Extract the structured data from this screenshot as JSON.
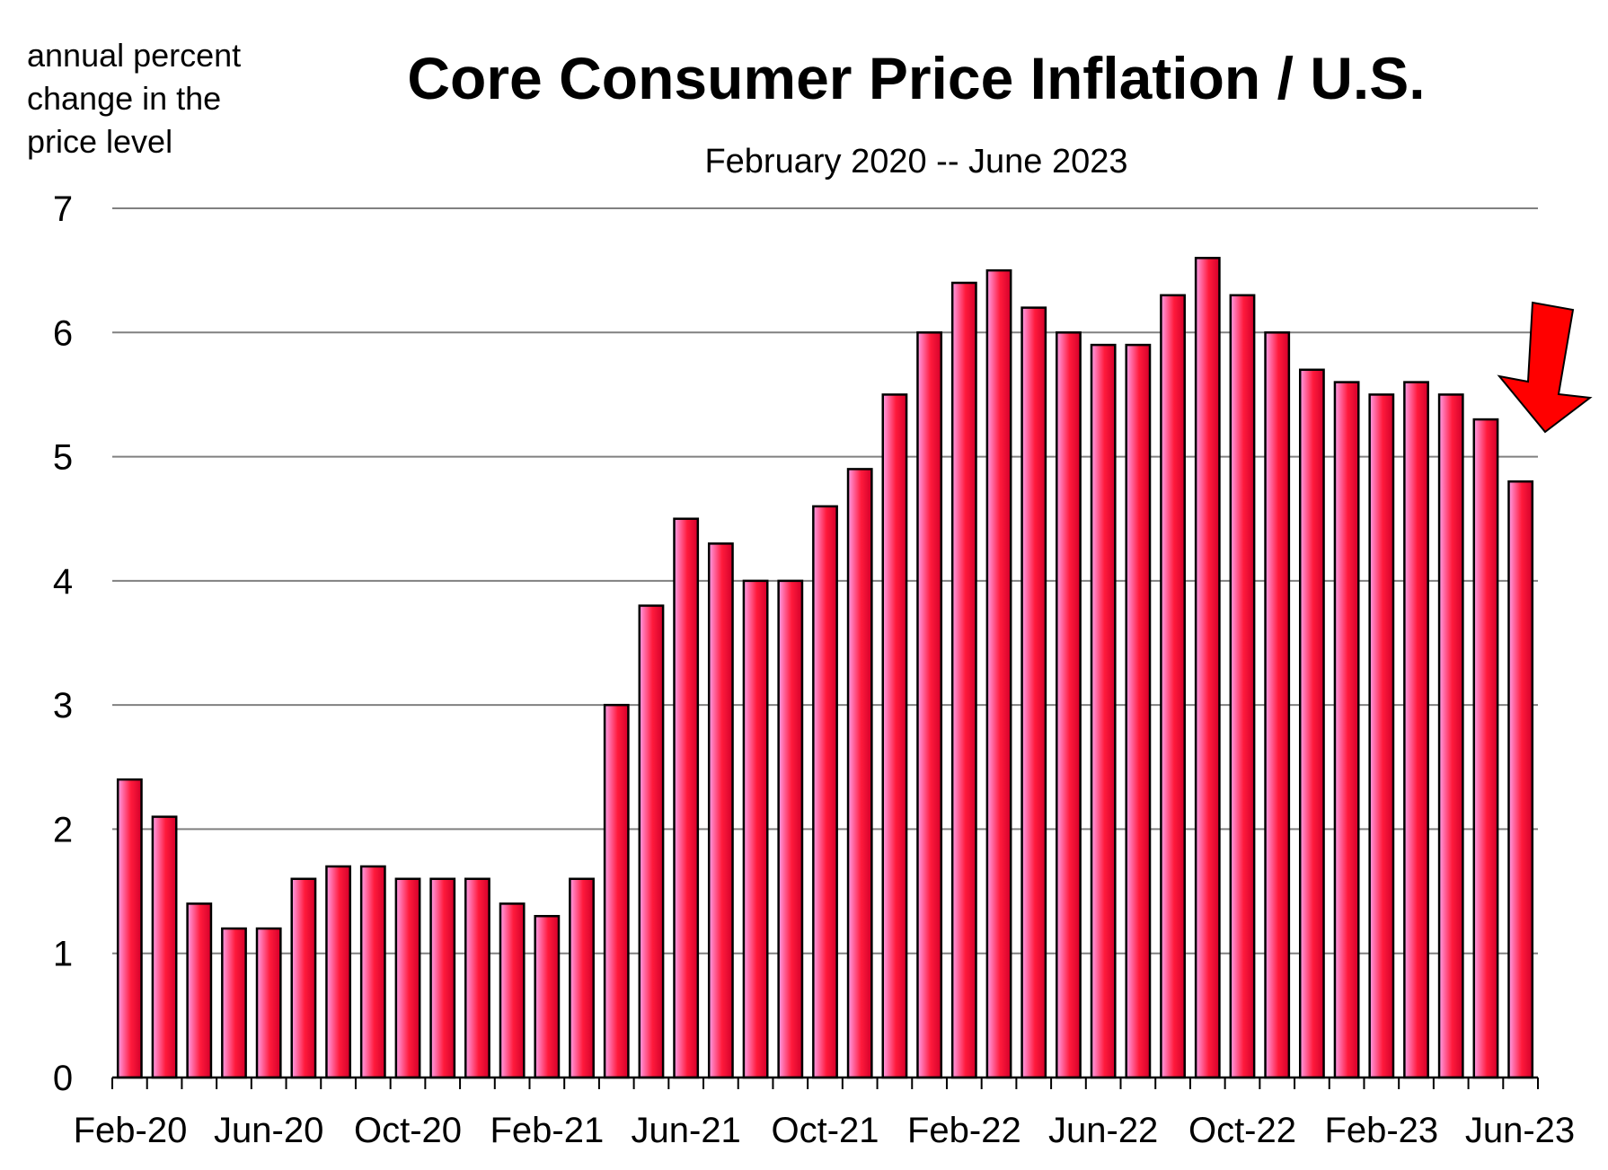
{
  "chart_data": {
    "type": "bar",
    "title": "Core Consumer Price Inflation / U.S.",
    "subtitle": "February 2020 -- June 2023",
    "ylabel_lines": [
      "annual  percent",
      "change in the",
      "price level"
    ],
    "xlabel": "",
    "ylim": [
      0,
      7
    ],
    "yticks": [
      0,
      1,
      2,
      3,
      4,
      5,
      6,
      7
    ],
    "grid": true,
    "categories": [
      "Feb-20",
      "Mar-20",
      "Apr-20",
      "May-20",
      "Jun-20",
      "Jul-20",
      "Aug-20",
      "Sep-20",
      "Oct-20",
      "Nov-20",
      "Dec-20",
      "Jan-21",
      "Feb-21",
      "Mar-21",
      "Apr-21",
      "May-21",
      "Jun-21",
      "Jul-21",
      "Aug-21",
      "Sep-21",
      "Oct-21",
      "Nov-21",
      "Dec-21",
      "Jan-22",
      "Feb-22",
      "Mar-22",
      "Apr-22",
      "May-22",
      "Jun-22",
      "Jul-22",
      "Aug-22",
      "Sep-22",
      "Oct-22",
      "Nov-22",
      "Dec-22",
      "Jan-23",
      "Feb-23",
      "Mar-23",
      "Apr-23",
      "May-23",
      "Jun-23"
    ],
    "visible_tick_labels": [
      "Feb-20",
      "Jun-20",
      "Oct-20",
      "Feb-21",
      "Jun-21",
      "Oct-21",
      "Feb-22",
      "Jun-22",
      "Oct-22",
      "Feb-23",
      "Jun-23"
    ],
    "values": [
      2.4,
      2.1,
      1.4,
      1.2,
      1.2,
      1.6,
      1.7,
      1.7,
      1.6,
      1.6,
      1.6,
      1.4,
      1.3,
      1.6,
      3.0,
      3.8,
      4.5,
      4.3,
      4.0,
      4.0,
      4.6,
      4.9,
      5.5,
      6.0,
      6.4,
      6.5,
      6.2,
      6.0,
      5.9,
      5.9,
      6.3,
      6.6,
      6.3,
      6.0,
      5.7,
      5.6,
      5.5,
      5.6,
      5.5,
      5.3,
      4.8
    ],
    "colors": {
      "bar_light": "#ff9ee8",
      "bar_mid": "#ff1a3c",
      "bar_dark": "#d4002a",
      "bar_stroke": "#000000",
      "grid": "#808080",
      "axis": "#000000",
      "arrow": "#ff0000"
    },
    "annotations": [
      {
        "type": "arrow",
        "icon": "down-arrow-icon",
        "points_to": "Jun-23"
      }
    ]
  }
}
